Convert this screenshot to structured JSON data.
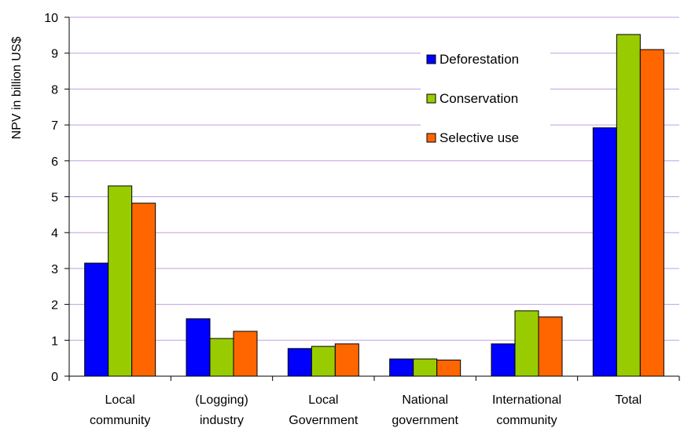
{
  "chart_data": {
    "type": "bar",
    "title": "",
    "xlabel": "",
    "ylabel": "NPV in billion US$",
    "ylim": [
      0,
      10
    ],
    "yticks": [
      "0",
      "1",
      "2",
      "3",
      "4",
      "5",
      "6",
      "7",
      "8",
      "9",
      "10"
    ],
    "grid": true,
    "legend_position": "top-right inside plot, vertical",
    "categories": [
      [
        "Local",
        "community"
      ],
      [
        "(Logging)",
        "industry"
      ],
      [
        "Local",
        "Government"
      ],
      [
        "National",
        "government"
      ],
      [
        "International",
        "community"
      ],
      [
        "Total"
      ]
    ],
    "series": [
      {
        "name": "Deforestation",
        "color": "#0000FF",
        "values": [
          3.15,
          1.6,
          0.77,
          0.48,
          0.9,
          6.92
        ]
      },
      {
        "name": "Conservation",
        "color": "#99CC00",
        "values": [
          5.3,
          1.05,
          0.83,
          0.48,
          1.82,
          9.52
        ]
      },
      {
        "name": "Selective use",
        "color": "#FF6600",
        "values": [
          4.82,
          1.25,
          0.9,
          0.45,
          1.65,
          9.1
        ]
      }
    ],
    "gridline_color": "#C0A0E0"
  }
}
